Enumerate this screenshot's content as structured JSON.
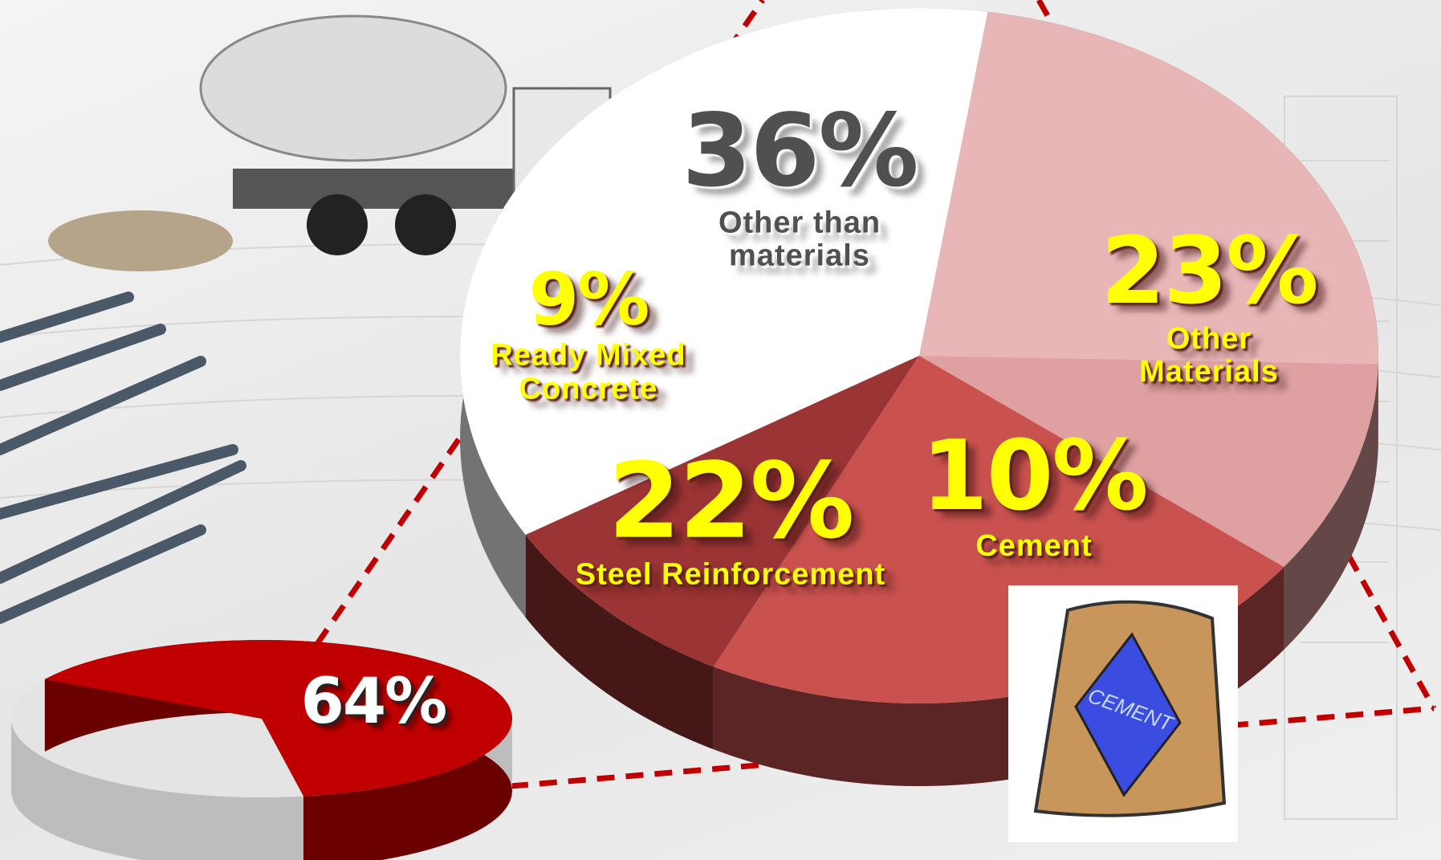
{
  "chart_data": [
    {
      "type": "pie",
      "categories": [
        "Other than materials",
        "Other Materials",
        "Cement",
        "Steel Reinforcement",
        "Ready Mixed Concrete"
      ],
      "values": [
        36,
        23,
        10,
        22,
        9
      ],
      "value_labels": [
        "36%",
        "23%",
        "10%",
        "22%",
        "9%"
      ],
      "colors": [
        "#ffffff",
        "#e8b6b6",
        "#dea0a0",
        "#c9524f",
        "#9b3434"
      ]
    },
    {
      "type": "pie",
      "values": [
        64
      ],
      "value_labels": [
        "64%"
      ],
      "colors": [
        "#c00000"
      ]
    }
  ],
  "illustrations": {
    "bag_label": "CEMENT"
  }
}
